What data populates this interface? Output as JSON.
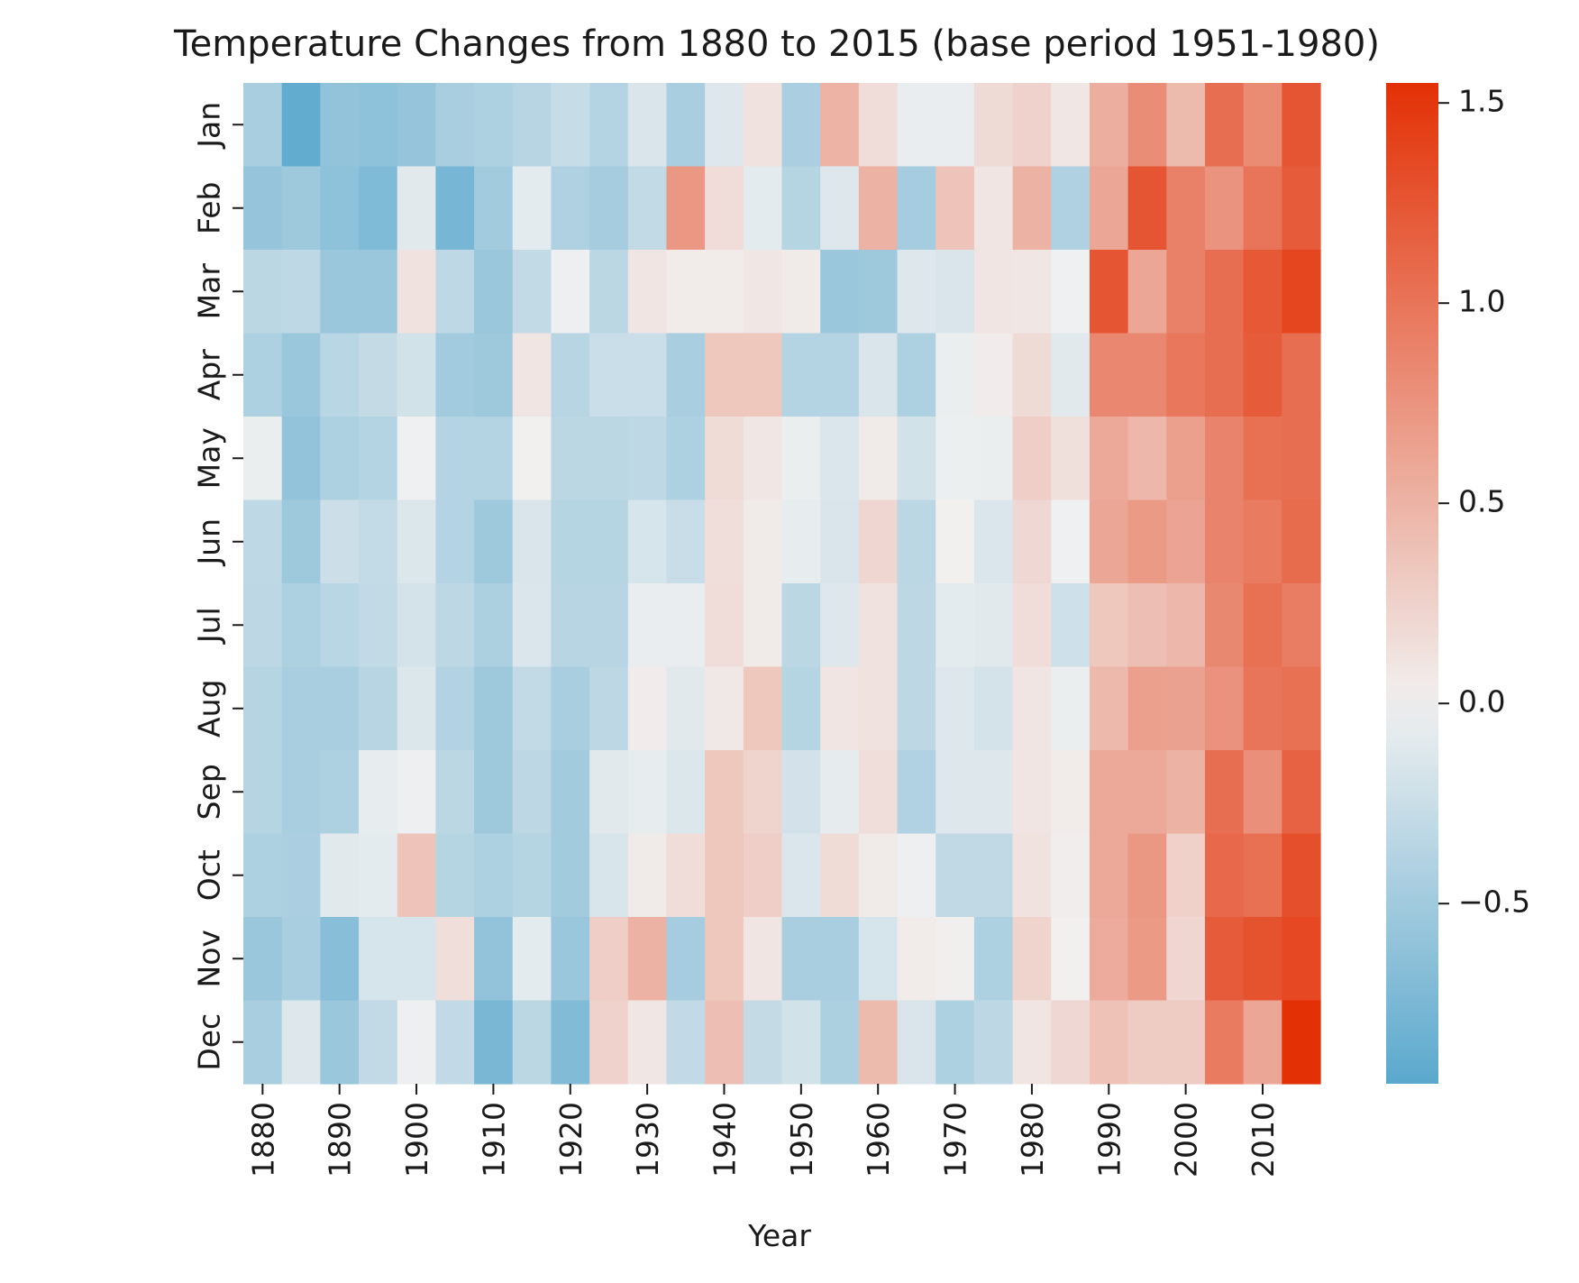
{
  "chart_data": {
    "type": "heatmap",
    "title": "Temperature Changes from 1880 to 2015 (base period 1951-1980)",
    "xlabel": "Year",
    "ylabel": "",
    "x_ticks": [
      "1880",
      "1890",
      "1900",
      "1910",
      "1920",
      "1930",
      "1940",
      "1950",
      "1960",
      "1970",
      "1980",
      "1990",
      "2000",
      "2010"
    ],
    "x_tick_years": [
      1880,
      1890,
      1900,
      1910,
      1920,
      1930,
      1940,
      1950,
      1960,
      1970,
      1980,
      1990,
      2000,
      2010
    ],
    "x": [
      1880,
      1885,
      1890,
      1895,
      1900,
      1905,
      1910,
      1915,
      1920,
      1925,
      1930,
      1935,
      1940,
      1945,
      1950,
      1955,
      1960,
      1965,
      1970,
      1975,
      1980,
      1985,
      1990,
      1995,
      2000,
      2005,
      2010,
      2015
    ],
    "y": [
      "Jan",
      "Feb",
      "Mar",
      "Apr",
      "May",
      "Jun",
      "Jul",
      "Aug",
      "Sep",
      "Oct",
      "Nov",
      "Dec"
    ],
    "values": [
      [
        -0.45,
        -0.9,
        -0.6,
        -0.62,
        -0.58,
        -0.46,
        -0.42,
        -0.36,
        -0.27,
        -0.38,
        -0.15,
        -0.46,
        -0.12,
        0.12,
        -0.44,
        0.49,
        0.16,
        -0.05,
        -0.05,
        0.18,
        0.25,
        0.08,
        0.54,
        0.8,
        0.44,
        1.05,
        0.82,
        1.25
      ],
      [
        -0.58,
        -0.52,
        -0.62,
        -0.72,
        -0.1,
        -0.77,
        -0.5,
        -0.08,
        -0.41,
        -0.48,
        -0.3,
        0.72,
        0.16,
        -0.08,
        -0.37,
        -0.12,
        0.5,
        -0.48,
        0.37,
        0.1,
        0.5,
        -0.41,
        0.6,
        1.25,
        0.9,
        0.75,
        1.0,
        1.2
      ],
      [
        -0.34,
        -0.32,
        -0.55,
        -0.55,
        0.12,
        -0.32,
        -0.55,
        -0.3,
        -0.02,
        -0.34,
        0.1,
        0.05,
        0.05,
        0.08,
        0.06,
        -0.55,
        -0.52,
        -0.12,
        -0.15,
        0.1,
        0.08,
        -0.01,
        1.25,
        0.6,
        0.9,
        1.05,
        1.22,
        1.38
      ],
      [
        -0.42,
        -0.55,
        -0.35,
        -0.28,
        -0.2,
        -0.5,
        -0.52,
        0.1,
        -0.36,
        -0.25,
        -0.25,
        -0.45,
        0.34,
        0.34,
        -0.38,
        -0.38,
        -0.15,
        -0.42,
        -0.04,
        0.04,
        0.18,
        -0.1,
        0.85,
        0.85,
        0.98,
        1.05,
        1.2,
        1.05
      ],
      [
        -0.04,
        -0.6,
        -0.42,
        -0.38,
        -0.01,
        -0.38,
        -0.38,
        0.01,
        -0.34,
        -0.34,
        -0.32,
        -0.42,
        0.17,
        0.08,
        -0.04,
        -0.14,
        0.06,
        -0.2,
        -0.03,
        -0.04,
        0.28,
        0.14,
        0.58,
        0.46,
        0.65,
        0.88,
        1.03,
        1.05
      ],
      [
        -0.32,
        -0.52,
        -0.23,
        -0.29,
        -0.13,
        -0.38,
        -0.52,
        -0.15,
        -0.37,
        -0.37,
        -0.17,
        -0.26,
        0.15,
        0.06,
        -0.06,
        -0.15,
        0.22,
        -0.34,
        0.01,
        -0.14,
        0.2,
        -0.01,
        0.6,
        0.7,
        0.62,
        0.88,
        0.95,
        1.08
      ],
      [
        -0.33,
        -0.42,
        -0.35,
        -0.3,
        -0.18,
        -0.33,
        -0.43,
        -0.14,
        -0.36,
        -0.36,
        -0.05,
        -0.05,
        0.16,
        0.06,
        -0.34,
        -0.12,
        0.12,
        -0.33,
        -0.08,
        -0.1,
        0.16,
        -0.22,
        0.34,
        0.4,
        0.46,
        0.84,
        1.03,
        0.93
      ],
      [
        -0.37,
        -0.46,
        -0.46,
        -0.36,
        -0.13,
        -0.39,
        -0.52,
        -0.3,
        -0.46,
        -0.33,
        0.04,
        -0.1,
        0.07,
        0.34,
        -0.37,
        0.1,
        0.12,
        -0.33,
        -0.12,
        -0.18,
        0.1,
        -0.04,
        0.45,
        0.65,
        0.64,
        0.76,
        1.0,
        1.03
      ],
      [
        -0.37,
        -0.46,
        -0.42,
        -0.06,
        -0.02,
        -0.34,
        -0.52,
        -0.33,
        -0.5,
        -0.1,
        -0.06,
        -0.13,
        0.34,
        0.23,
        -0.19,
        -0.07,
        0.15,
        -0.4,
        -0.12,
        -0.12,
        0.1,
        0.05,
        0.58,
        0.58,
        0.5,
        1.05,
        0.78,
        1.15
      ],
      [
        -0.42,
        -0.44,
        -0.1,
        -0.08,
        0.37,
        -0.37,
        -0.42,
        -0.37,
        -0.5,
        -0.16,
        0.06,
        0.16,
        0.34,
        0.28,
        -0.14,
        0.17,
        0.06,
        -0.02,
        -0.31,
        -0.31,
        0.12,
        0.03,
        0.58,
        0.72,
        0.26,
        1.1,
        1.04,
        1.3
      ],
      [
        -0.55,
        -0.46,
        -0.66,
        -0.17,
        -0.17,
        0.15,
        -0.6,
        -0.08,
        -0.55,
        0.28,
        0.5,
        -0.47,
        0.34,
        0.1,
        -0.45,
        -0.45,
        -0.17,
        0.05,
        0.02,
        -0.42,
        0.23,
        0.01,
        0.56,
        0.7,
        0.22,
        1.2,
        1.28,
        1.36
      ],
      [
        -0.46,
        -0.12,
        -0.55,
        -0.3,
        -0.02,
        -0.3,
        -0.75,
        -0.34,
        -0.7,
        0.25,
        0.08,
        -0.3,
        0.4,
        -0.28,
        -0.2,
        -0.43,
        0.44,
        -0.15,
        -0.42,
        -0.33,
        0.1,
        0.2,
        0.38,
        0.3,
        0.3,
        0.95,
        0.6,
        1.55
      ]
    ],
    "vmin": -0.95,
    "vmax": 1.55,
    "colormap": {
      "neg": "#5aa8cd",
      "mid": "#f1f1f1",
      "pos": "#e33005"
    },
    "colorbar_ticks": [
      -0.5,
      0.0,
      0.5,
      1.0,
      1.5
    ],
    "colorbar_tick_labels": [
      "−0.5",
      "0.0",
      "0.5",
      "1.0",
      "1.5"
    ],
    "grid": false,
    "legend": "colorbar-right"
  }
}
